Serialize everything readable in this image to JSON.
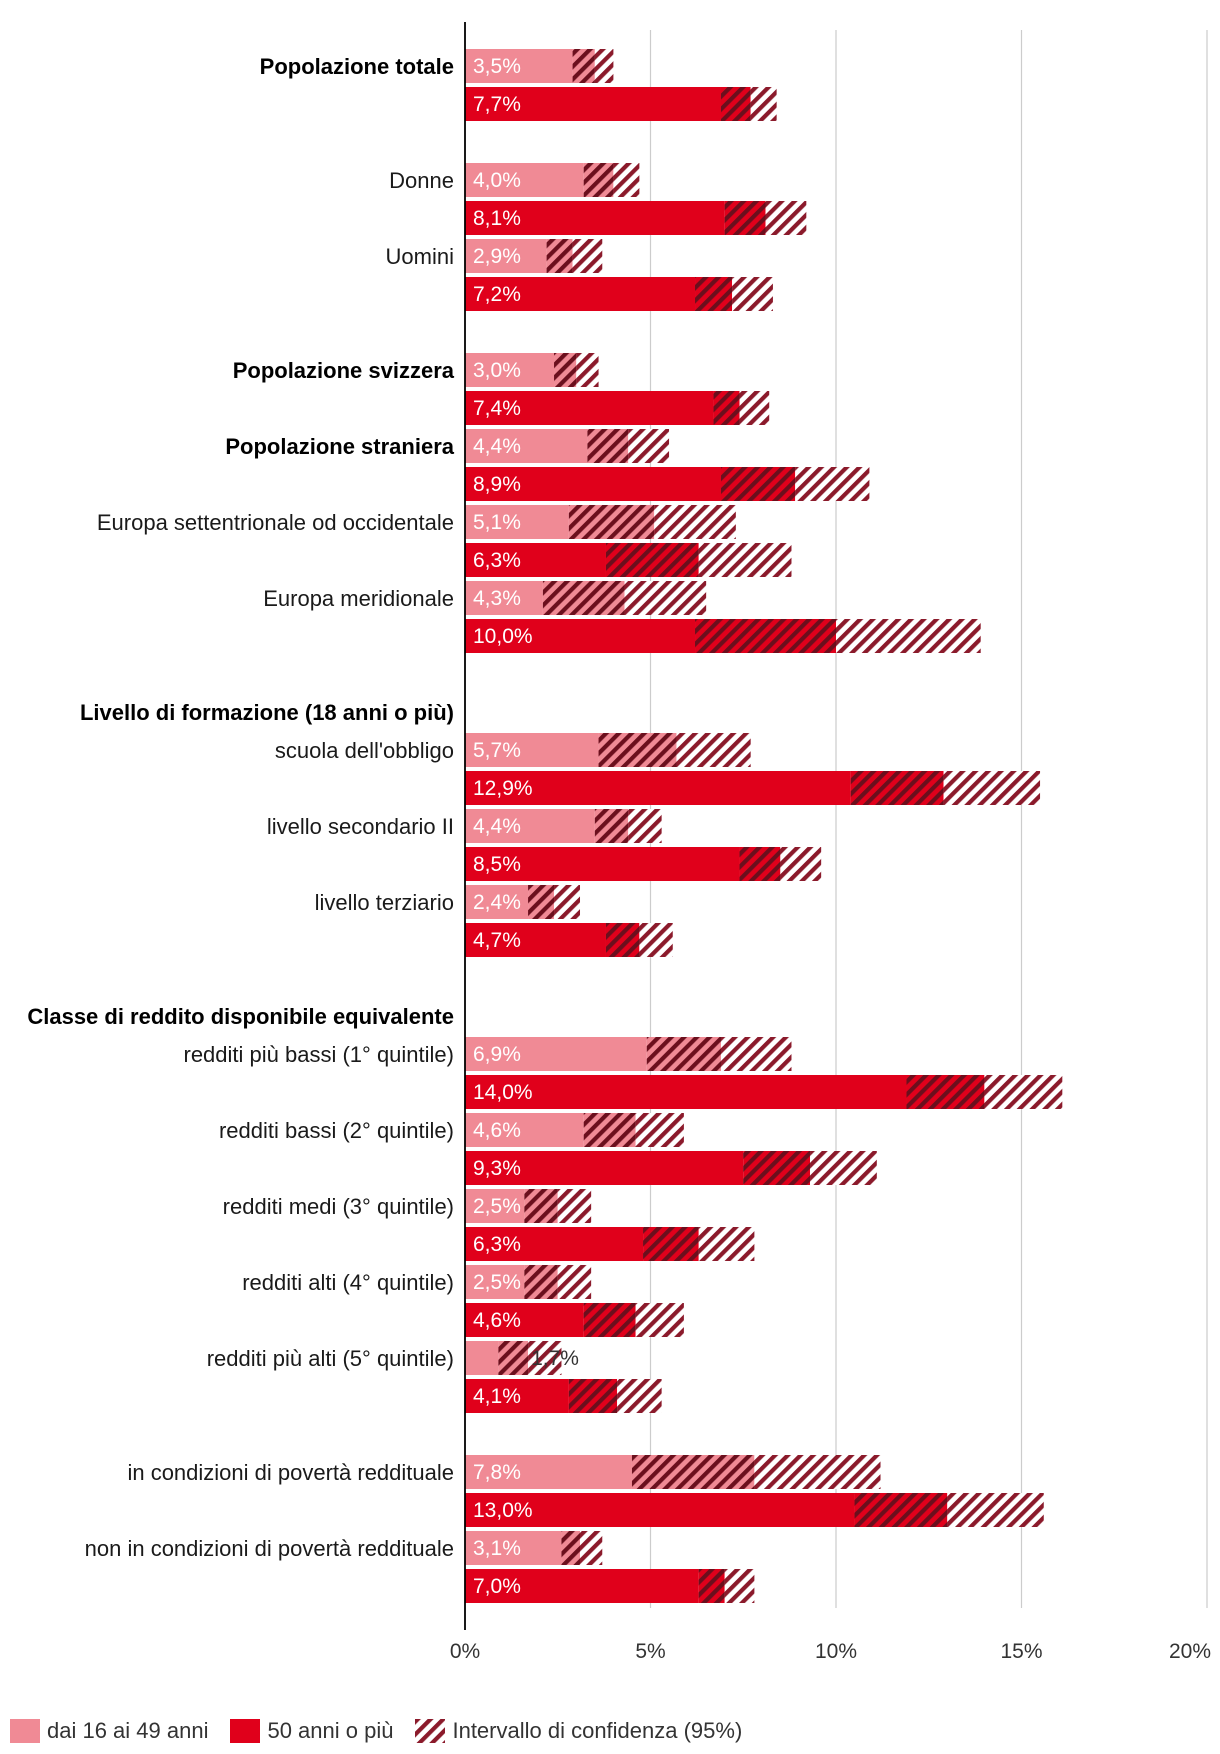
{
  "chart_data": {
    "type": "bar",
    "orientation": "horizontal",
    "xlim": [
      0,
      20
    ],
    "x_ticks": [
      "0%",
      "5%",
      "10%",
      "15%",
      "20%"
    ],
    "grid": true,
    "colors": {
      "young": "#f08a95",
      "old": "#e0001b",
      "ci": "#8b1a2b"
    },
    "legend": {
      "position": "bottom-left",
      "items": [
        {
          "key": "young",
          "label": "dai 16 ai 49 anni"
        },
        {
          "key": "old",
          "label": "50 anni o più"
        },
        {
          "key": "ci",
          "label": "Intervallo di confidenza (95%)"
        }
      ]
    },
    "categories": [
      {
        "label": "Popolazione totale",
        "bold": true,
        "young": {
          "value": 3.5,
          "label": "3,5%",
          "ci": [
            2.9,
            4.0
          ]
        },
        "old": {
          "value": 7.7,
          "label": "7,7%",
          "ci": [
            6.9,
            8.4
          ]
        }
      },
      {
        "label": "Donne",
        "young": {
          "value": 4.0,
          "label": "4,0%",
          "ci": [
            3.2,
            4.7
          ]
        },
        "old": {
          "value": 8.1,
          "label": "8,1%",
          "ci": [
            7.0,
            9.2
          ]
        }
      },
      {
        "label": "Uomini",
        "young": {
          "value": 2.9,
          "label": "2,9%",
          "ci": [
            2.2,
            3.7
          ]
        },
        "old": {
          "value": 7.2,
          "label": "7,2%",
          "ci": [
            6.2,
            8.3
          ]
        }
      },
      {
        "label": "Popolazione svizzera",
        "bold": true,
        "young": {
          "value": 3.0,
          "label": "3,0%",
          "ci": [
            2.4,
            3.6
          ]
        },
        "old": {
          "value": 7.4,
          "label": "7,4%",
          "ci": [
            6.7,
            8.2
          ]
        }
      },
      {
        "label": "Popolazione straniera",
        "bold": true,
        "young": {
          "value": 4.4,
          "label": "4,4%",
          "ci": [
            3.3,
            5.5
          ]
        },
        "old": {
          "value": 8.9,
          "label": "8,9%",
          "ci": [
            6.9,
            10.9
          ]
        }
      },
      {
        "label": "Europa settentrionale od occidentale",
        "young": {
          "value": 5.1,
          "label": "5,1%",
          "ci": [
            2.8,
            7.3
          ]
        },
        "old": {
          "value": 6.3,
          "label": "6,3%",
          "ci": [
            3.8,
            8.8
          ]
        }
      },
      {
        "label": "Europa meridionale",
        "young": {
          "value": 4.3,
          "label": "4,3%",
          "ci": [
            2.1,
            6.5
          ]
        },
        "old": {
          "value": 10.0,
          "label": "10,0%",
          "ci": [
            6.2,
            13.9
          ]
        }
      },
      {
        "label": "Livello di formazione (18 anni o più)",
        "bold": true,
        "header": true
      },
      {
        "label": "scuola dell'obbligo",
        "young": {
          "value": 5.7,
          "label": "5,7%",
          "ci": [
            3.6,
            7.7
          ]
        },
        "old": {
          "value": 12.9,
          "label": "12,9%",
          "ci": [
            10.4,
            15.5
          ]
        }
      },
      {
        "label": "livello secondario II",
        "young": {
          "value": 4.4,
          "label": "4,4%",
          "ci": [
            3.5,
            5.3
          ]
        },
        "old": {
          "value": 8.5,
          "label": "8,5%",
          "ci": [
            7.4,
            9.6
          ]
        }
      },
      {
        "label": "livello terziario",
        "young": {
          "value": 2.4,
          "label": "2,4%",
          "ci": [
            1.7,
            3.1
          ]
        },
        "old": {
          "value": 4.7,
          "label": "4,7%",
          "ci": [
            3.8,
            5.6
          ]
        }
      },
      {
        "label": "Classe di reddito disponibile equivalente",
        "bold": true,
        "header": true
      },
      {
        "label": "redditi più bassi (1° quintile)",
        "young": {
          "value": 6.9,
          "label": "6,9%",
          "ci": [
            4.9,
            8.8
          ]
        },
        "old": {
          "value": 14.0,
          "label": "14,0%",
          "ci": [
            11.9,
            16.1
          ]
        }
      },
      {
        "label": "redditi bassi (2° quintile)",
        "young": {
          "value": 4.6,
          "label": "4,6%",
          "ci": [
            3.2,
            5.9
          ]
        },
        "old": {
          "value": 9.3,
          "label": "9,3%",
          "ci": [
            7.5,
            11.1
          ]
        }
      },
      {
        "label": "redditi medi (3° quintile)",
        "young": {
          "value": 2.5,
          "label": "2,5%",
          "ci": [
            1.6,
            3.4
          ]
        },
        "old": {
          "value": 6.3,
          "label": "6,3%",
          "ci": [
            4.8,
            7.8
          ]
        }
      },
      {
        "label": "redditi alti (4° quintile)",
        "young": {
          "value": 2.5,
          "label": "2,5%",
          "ci": [
            1.6,
            3.4
          ]
        },
        "old": {
          "value": 4.6,
          "label": "4,6%",
          "ci": [
            3.2,
            5.9
          ]
        }
      },
      {
        "label": "redditi più alti (5° quintile)",
        "young": {
          "value": 1.7,
          "label": "1,7%",
          "ci": [
            0.9,
            2.6
          ],
          "label_outside": true
        },
        "old": {
          "value": 4.1,
          "label": "4,1%",
          "ci": [
            2.8,
            5.3
          ]
        }
      },
      {
        "label": "in condizioni di povertà reddituale",
        "young": {
          "value": 7.8,
          "label": "7,8%",
          "ci": [
            4.5,
            11.2
          ]
        },
        "old": {
          "value": 13.0,
          "label": "13,0%",
          "ci": [
            10.5,
            15.6
          ]
        }
      },
      {
        "label": "non in condizioni di povertà reddituale",
        "young": {
          "value": 3.1,
          "label": "3,1%",
          "ci": [
            2.6,
            3.7
          ]
        },
        "old": {
          "value": 7.0,
          "label": "7,0%",
          "ci": [
            6.3,
            7.8
          ]
        }
      }
    ]
  }
}
